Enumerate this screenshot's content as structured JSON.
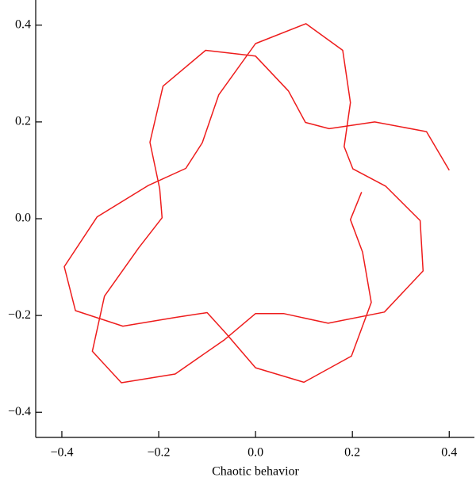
{
  "chart_data": {
    "type": "line",
    "x_label": "Chaotic behavior",
    "xlim": [
      -0.454,
      0.452
    ],
    "ylim": [
      -0.452,
      0.452
    ],
    "xticks": [
      {
        "value": -0.4,
        "label": "−0.4"
      },
      {
        "value": -0.2,
        "label": "−0.2"
      },
      {
        "value": 0,
        "label": "0.0"
      },
      0.2,
      0.4
    ],
    "yticks": [
      {
        "value": -0.4,
        "label": "−0.4"
      },
      {
        "value": -0.2,
        "label": "−0.2"
      },
      {
        "value": 0,
        "label": "0.0"
      },
      0.2,
      0.4
    ],
    "series": [
      {
        "color": "#ee1c1c",
        "x": [
          0.4,
          0.353,
          0.246,
          0.152,
          0.103,
          0.068,
          0,
          -0.103,
          -0.191,
          -0.218,
          -0.198,
          -0.193,
          -0.241,
          -0.312,
          -0.337,
          -0.277,
          -0.166,
          -0.064,
          0,
          0.058,
          0.15,
          0.266,
          0.346,
          0.34,
          0.269,
          0.201,
          0.183,
          0.196,
          0.18,
          0.104,
          0,
          -0.076,
          -0.11,
          -0.144,
          -0.221,
          -0.327,
          -0.395,
          -0.372,
          -0.274,
          -0.166,
          -0.1,
          -0.061,
          0,
          0.1,
          0.198,
          0.239,
          0.221,
          0.196,
          0.219
        ],
        "values": [
          0.1,
          0.18,
          0.2,
          0.186,
          0.199,
          0.264,
          0.336,
          0.348,
          0.274,
          0.158,
          0.062,
          0.002,
          -0.06,
          -0.16,
          -0.274,
          -0.339,
          -0.321,
          -0.25,
          -0.196,
          -0.196,
          -0.216,
          -0.193,
          -0.108,
          -0.004,
          0.067,
          0.103,
          0.149,
          0.24,
          0.348,
          0.403,
          0.362,
          0.256,
          0.157,
          0.104,
          0.069,
          0.004,
          -0.099,
          -0.19,
          -0.222,
          -0.204,
          -0.194,
          -0.237,
          -0.308,
          -0.338,
          -0.284,
          -0.173,
          -0.069,
          -0.002,
          0.055
        ]
      }
    ]
  }
}
